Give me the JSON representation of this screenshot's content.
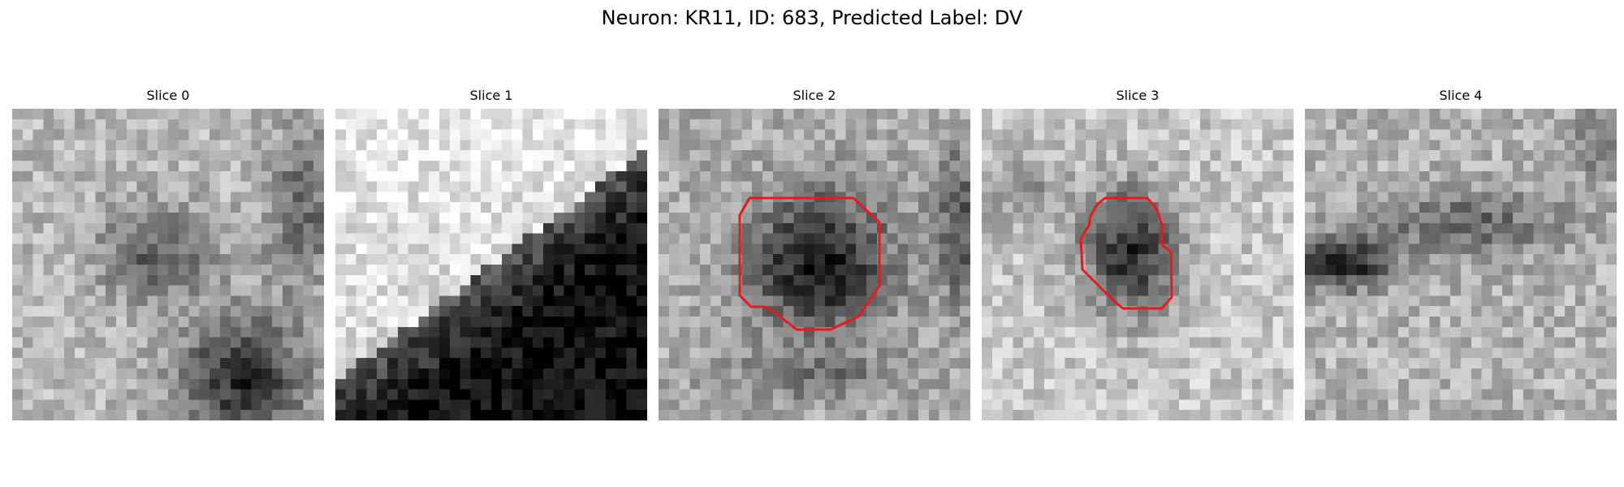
{
  "figure": {
    "title": "Neuron: KR11, ID: 683, Predicted Label: DV"
  },
  "slices": [
    {
      "label": "Slice 0",
      "has_contour": false
    },
    {
      "label": "Slice 1",
      "has_contour": false
    },
    {
      "label": "Slice 2",
      "has_contour": true
    },
    {
      "label": "Slice 3",
      "has_contour": true
    },
    {
      "label": "Slice 4",
      "has_contour": false
    }
  ],
  "colors": {
    "contour": "#e41a1c",
    "colormap": "grayscale"
  }
}
